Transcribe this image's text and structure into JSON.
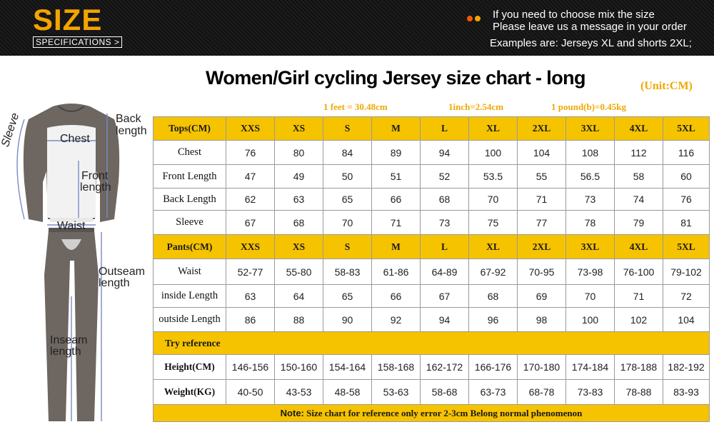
{
  "header": {
    "logo_title": "SIZE",
    "logo_subtitle": "SPECIFICATIONS >",
    "notice_line1": "If you need to choose mix the size",
    "notice_line2": "Please leave us a message in your order",
    "notice_line3": "Examples are: Jerseys XL and shorts 2XL;",
    "dot_colors": [
      "#f05a00",
      "#f4a400"
    ]
  },
  "title": "Women/Girl cycling Jersey size chart -  long",
  "unit": "(Unit:CM)",
  "conversions": [
    "1 feet = 30.48cm",
    "1inch=2.54cm",
    "1 pound(b)=0.45kg"
  ],
  "figure": {
    "labels": {
      "chest": "Chest",
      "back1": "Back",
      "back2": "length",
      "front1": "Front",
      "front2": "length",
      "sleeve": "Sleeve",
      "waist": "Waist",
      "outseam1": "Outseam",
      "outseam2": "length",
      "inseam1": "Inseam",
      "inseam2": "length"
    }
  },
  "table": {
    "tops_header": "Tops(CM)",
    "pants_header": "Pants(CM)",
    "sizes": [
      "XXS",
      "XS",
      "S",
      "M",
      "L",
      "XL",
      "2XL",
      "3XL",
      "4XL",
      "5XL"
    ],
    "tops_rows": [
      {
        "label": "Chest",
        "values": [
          "76",
          "80",
          "84",
          "89",
          "94",
          "100",
          "104",
          "108",
          "112",
          "116"
        ]
      },
      {
        "label": "Front Length",
        "values": [
          "47",
          "49",
          "50",
          "51",
          "52",
          "53.5",
          "55",
          "56.5",
          "58",
          "60"
        ]
      },
      {
        "label": "Back Length",
        "values": [
          "62",
          "63",
          "65",
          "66",
          "68",
          "70",
          "71",
          "73",
          "74",
          "76"
        ]
      },
      {
        "label": "Sleeve",
        "values": [
          "67",
          "68",
          "70",
          "71",
          "73",
          "75",
          "77",
          "78",
          "79",
          "81"
        ]
      }
    ],
    "pants_rows": [
      {
        "label": "Waist",
        "values": [
          "52-77",
          "55-80",
          "58-83",
          "61-86",
          "64-89",
          "67-92",
          "70-95",
          "73-98",
          "76-100",
          "79-102"
        ]
      },
      {
        "label": "inside Length",
        "values": [
          "63",
          "64",
          "65",
          "66",
          "67",
          "68",
          "69",
          "70",
          "71",
          "72"
        ]
      },
      {
        "label": "outside Length",
        "values": [
          "86",
          "88",
          "90",
          "92",
          "94",
          "96",
          "98",
          "100",
          "102",
          "104"
        ]
      }
    ],
    "try_reference": "Try reference",
    "ref_rows": [
      {
        "label": "Height(CM)",
        "values": [
          "146-156",
          "150-160",
          "154-164",
          "158-168",
          "162-172",
          "166-176",
          "170-180",
          "174-184",
          "178-188",
          "182-192"
        ]
      },
      {
        "label": "Weight(KG)",
        "values": [
          "40-50",
          "43-53",
          "48-58",
          "53-63",
          "58-68",
          "63-73",
          "68-78",
          "73-83",
          "78-88",
          "83-93"
        ]
      }
    ],
    "note_label": "Note:",
    "note_text": " Size chart for reference only error 2-3cm Belong normal phenomenon"
  }
}
